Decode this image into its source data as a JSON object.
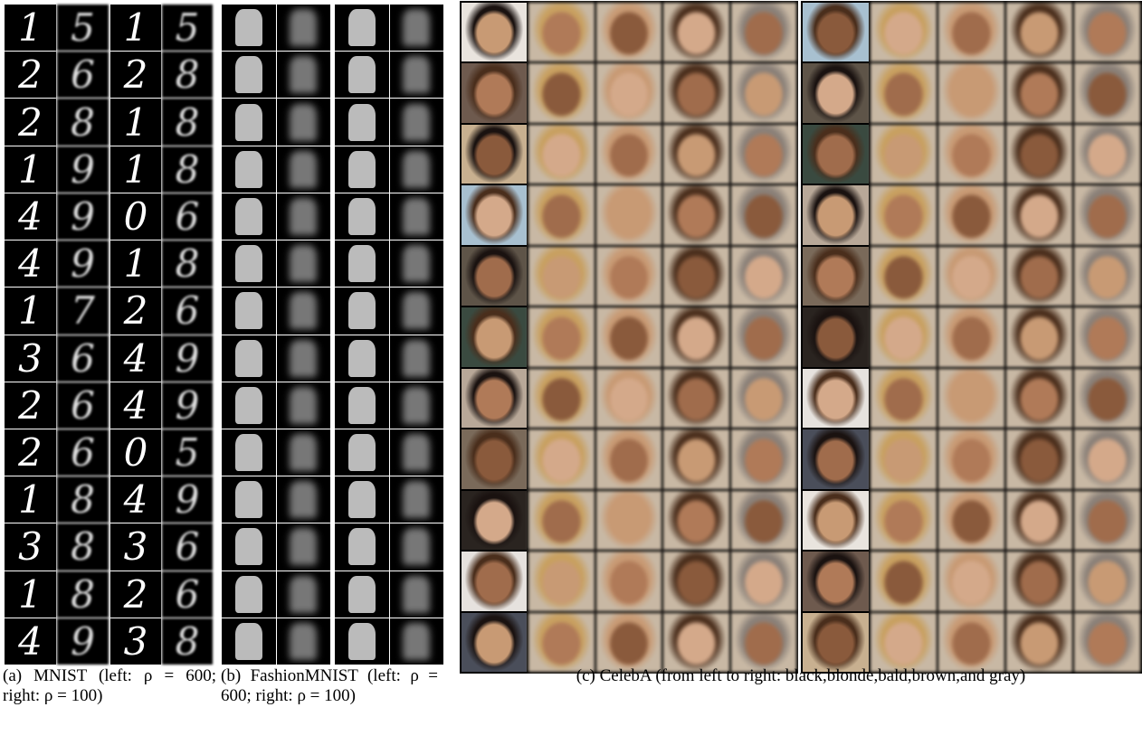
{
  "mnist": {
    "left": [
      [
        "1",
        "5"
      ],
      [
        "2",
        "6"
      ],
      [
        "2",
        "8"
      ],
      [
        "1",
        "9"
      ],
      [
        "4",
        "9"
      ],
      [
        "4",
        "9"
      ],
      [
        "1",
        "7"
      ],
      [
        "3",
        "6"
      ],
      [
        "2",
        "6"
      ],
      [
        "2",
        "6"
      ],
      [
        "1",
        "8"
      ],
      [
        "3",
        "8"
      ],
      [
        "1",
        "8"
      ],
      [
        "4",
        "9"
      ]
    ],
    "right": [
      [
        "1",
        "5"
      ],
      [
        "2",
        "8"
      ],
      [
        "1",
        "8"
      ],
      [
        "1",
        "8"
      ],
      [
        "0",
        "6"
      ],
      [
        "1",
        "8"
      ],
      [
        "2",
        "6"
      ],
      [
        "4",
        "9"
      ],
      [
        "4",
        "9"
      ],
      [
        "0",
        "5"
      ],
      [
        "4",
        "9"
      ],
      [
        "3",
        "6"
      ],
      [
        "2",
        "6"
      ],
      [
        "3",
        "8"
      ]
    ]
  },
  "captions": {
    "a": "(a) MNIST (left: ρ = 600; right: ρ = 100)",
    "b": "(b) FashionMNIST (left: ρ = 600; right: ρ = 100)",
    "c": "(c) CelebA (from left to right: black,blonde,bald,brown,and gray)"
  }
}
